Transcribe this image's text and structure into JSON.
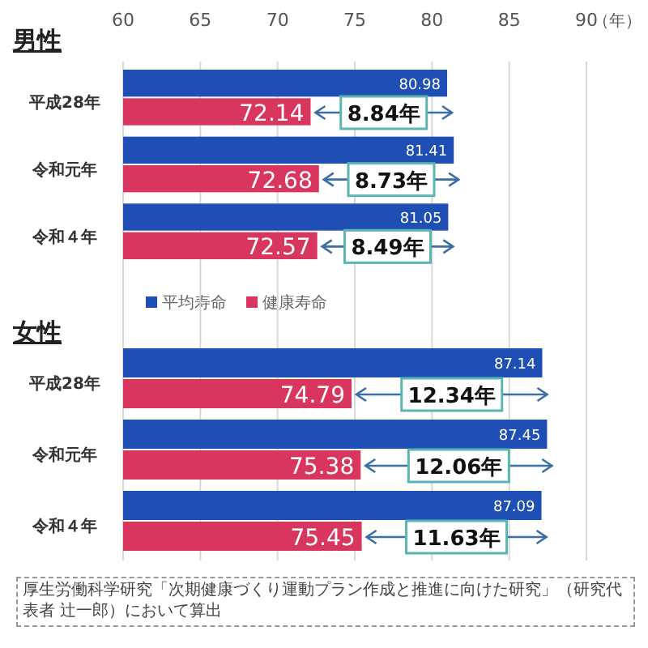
{
  "chart_data": [
    {
      "type": "bar",
      "orientation": "horizontal",
      "title": "男性",
      "xlabel": "（年）",
      "categories": [
        "平成28年",
        "令和元年",
        "令和４年"
      ],
      "series": [
        {
          "name": "平均寿命",
          "color": "#1f4fb4",
          "values": [
            80.98,
            81.41,
            81.05
          ]
        },
        {
          "name": "健康寿命",
          "color": "#d8365f",
          "values": [
            72.14,
            72.68,
            72.57
          ]
        }
      ],
      "xlim": [
        60,
        90
      ],
      "xticks": [
        60,
        65,
        70,
        75,
        80,
        85,
        90
      ],
      "grid": "x",
      "data_labels": true,
      "legend": "bottom",
      "annotations": [
        {
          "text": "8.84年",
          "y": "平成28年"
        },
        {
          "text": "8.73年",
          "y": "令和元年"
        },
        {
          "text": "8.49年",
          "y": "令和４年"
        }
      ]
    },
    {
      "type": "bar",
      "orientation": "horizontal",
      "title": "女性",
      "categories": [
        "平成28年",
        "令和元年",
        "令和４年"
      ],
      "series": [
        {
          "color": "#1f4fb4",
          "values": [
            87.14,
            87.45,
            87.09
          ]
        },
        {
          "color": "#d8365f",
          "values": [
            74.79,
            75.38,
            75.45
          ]
        }
      ],
      "xlim": [
        60,
        90
      ],
      "xticks": [
        60,
        65,
        70,
        75,
        80,
        85,
        90
      ],
      "tick_labels": "y",
      "grid": "x",
      "data_labels": true,
      "annotations": [
        {
          "text": "12.34年",
          "y": "平成28年"
        },
        {
          "text": "12.06年",
          "y": "令和元年"
        },
        {
          "text": "11.63年",
          "y": "令和４年"
        },
        "厚生労働科学研究「次期健康づくり運動プラン作成と推進に向けた研究」（研究代表者 辻一郎）において算出"
      ]
    }
  ]
}
